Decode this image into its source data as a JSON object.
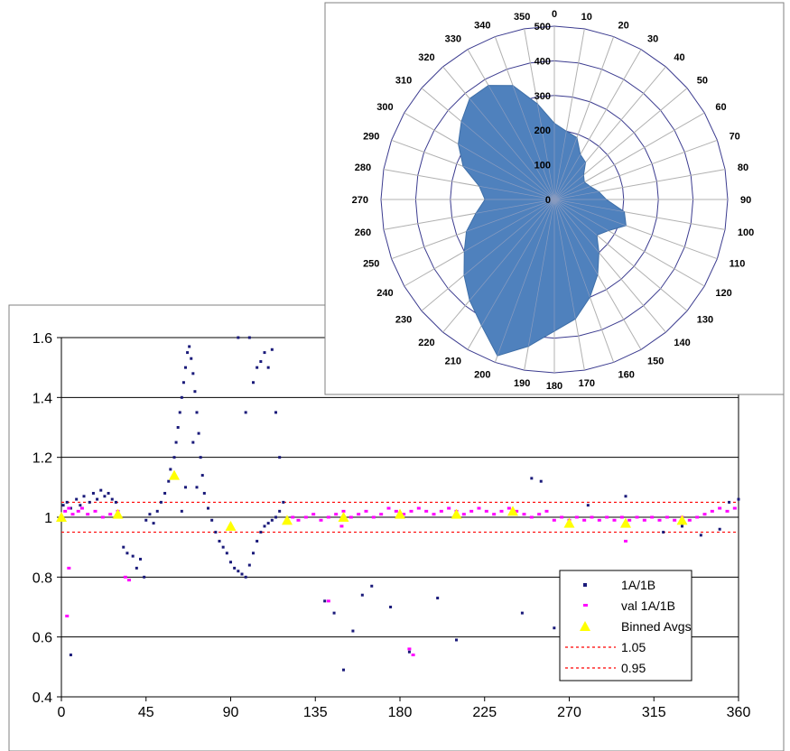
{
  "chart_data": [
    {
      "type": "scatter",
      "title": "",
      "xlabel": "",
      "ylabel": "",
      "xlim": [
        0,
        360
      ],
      "ylim": [
        0.4,
        1.6
      ],
      "x_ticks": [
        "0",
        "45",
        "90",
        "135",
        "180",
        "225",
        "270",
        "315",
        "360"
      ],
      "y_ticks": [
        "0.4",
        "0.6",
        "0.8",
        "1",
        "1.2",
        "1.4",
        "1.6"
      ],
      "grid": "horizontal",
      "legend_position": "bottom-right",
      "series": [
        {
          "name": "1A/1B",
          "color": "#1a1a7a",
          "marker": "dot",
          "points": [
            [
              1,
              1.04
            ],
            [
              3,
              1.05
            ],
            [
              5,
              1.03
            ],
            [
              8,
              1.06
            ],
            [
              10,
              1.04
            ],
            [
              12,
              1.07
            ],
            [
              15,
              1.05
            ],
            [
              17,
              1.08
            ],
            [
              19,
              1.06
            ],
            [
              21,
              1.09
            ],
            [
              23,
              1.07
            ],
            [
              25,
              1.08
            ],
            [
              27,
              1.06
            ],
            [
              29,
              1.05
            ],
            [
              5,
              0.54
            ],
            [
              33,
              0.9
            ],
            [
              35,
              0.88
            ],
            [
              38,
              0.87
            ],
            [
              40,
              0.83
            ],
            [
              42,
              0.86
            ],
            [
              44,
              0.8
            ],
            [
              45,
              0.99
            ],
            [
              47,
              1.01
            ],
            [
              49,
              0.98
            ],
            [
              51,
              1.02
            ],
            [
              53,
              1.05
            ],
            [
              55,
              1.08
            ],
            [
              57,
              1.12
            ],
            [
              58,
              1.16
            ],
            [
              60,
              1.2
            ],
            [
              61,
              1.25
            ],
            [
              62,
              1.3
            ],
            [
              63,
              1.35
            ],
            [
              64,
              1.4
            ],
            [
              65,
              1.45
            ],
            [
              66,
              1.5
            ],
            [
              67,
              1.55
            ],
            [
              68,
              1.57
            ],
            [
              69,
              1.53
            ],
            [
              70,
              1.48
            ],
            [
              71,
              1.42
            ],
            [
              72,
              1.35
            ],
            [
              73,
              1.28
            ],
            [
              74,
              1.2
            ],
            [
              75,
              1.14
            ],
            [
              76,
              1.08
            ],
            [
              78,
              1.03
            ],
            [
              80,
              0.99
            ],
            [
              82,
              0.95
            ],
            [
              84,
              0.92
            ],
            [
              86,
              0.9
            ],
            [
              88,
              0.88
            ],
            [
              90,
              0.85
            ],
            [
              92,
              0.83
            ],
            [
              94,
              0.82
            ],
            [
              96,
              0.81
            ],
            [
              98,
              0.8
            ],
            [
              100,
              0.84
            ],
            [
              102,
              0.88
            ],
            [
              104,
              0.92
            ],
            [
              106,
              0.95
            ],
            [
              108,
              0.97
            ],
            [
              110,
              0.98
            ],
            [
              112,
              0.99
            ],
            [
              114,
              1.0
            ],
            [
              116,
              1.02
            ],
            [
              64,
              1.02
            ],
            [
              66,
              1.1
            ],
            [
              70,
              1.25
            ],
            [
              72,
              1.1
            ],
            [
              94,
              1.6
            ],
            [
              98,
              1.35
            ],
            [
              100,
              1.6
            ],
            [
              102,
              1.45
            ],
            [
              104,
              1.5
            ],
            [
              106,
              1.52
            ],
            [
              108,
              1.55
            ],
            [
              110,
              1.5
            ],
            [
              112,
              1.56
            ],
            [
              114,
              1.35
            ],
            [
              116,
              1.2
            ],
            [
              118,
              1.05
            ],
            [
              140,
              0.72
            ],
            [
              145,
              0.68
            ],
            [
              150,
              0.49
            ],
            [
              155,
              0.62
            ],
            [
              160,
              0.74
            ],
            [
              165,
              0.77
            ],
            [
              175,
              0.7
            ],
            [
              185,
              0.55
            ],
            [
              200,
              0.73
            ],
            [
              210,
              0.59
            ],
            [
              245,
              0.68
            ],
            [
              250,
              1.13
            ],
            [
              255,
              1.12
            ],
            [
              262,
              0.63
            ],
            [
              280,
              1.04
            ],
            [
              300,
              1.07
            ],
            [
              320,
              0.95
            ],
            [
              330,
              0.97
            ],
            [
              340,
              0.94
            ],
            [
              350,
              0.96
            ],
            [
              355,
              1.05
            ],
            [
              360,
              1.06
            ]
          ]
        },
        {
          "name": "val 1A/1B",
          "color": "#ff00ff",
          "marker": "dash",
          "points": [
            [
              2,
              1.02
            ],
            [
              4,
              1.03
            ],
            [
              6,
              1.01
            ],
            [
              9,
              1.02
            ],
            [
              11,
              1.03
            ],
            [
              14,
              1.01
            ],
            [
              18,
              1.02
            ],
            [
              22,
              1.0
            ],
            [
              26,
              1.01
            ],
            [
              30,
              1.02
            ],
            [
              3,
              0.67
            ],
            [
              4,
              0.83
            ],
            [
              34,
              0.8
            ],
            [
              36,
              0.79
            ],
            [
              123,
              1.0
            ],
            [
              126,
              0.99
            ],
            [
              130,
              1.0
            ],
            [
              134,
              1.01
            ],
            [
              138,
              0.99
            ],
            [
              142,
              1.0
            ],
            [
              146,
              1.01
            ],
            [
              150,
              1.02
            ],
            [
              154,
              1.0
            ],
            [
              158,
              1.01
            ],
            [
              162,
              1.02
            ],
            [
              166,
              1.0
            ],
            [
              170,
              1.01
            ],
            [
              174,
              1.03
            ],
            [
              178,
              1.02
            ],
            [
              182,
              1.01
            ],
            [
              186,
              1.02
            ],
            [
              190,
              1.03
            ],
            [
              194,
              1.02
            ],
            [
              198,
              1.01
            ],
            [
              202,
              1.02
            ],
            [
              206,
              1.03
            ],
            [
              210,
              1.02
            ],
            [
              214,
              1.01
            ],
            [
              218,
              1.02
            ],
            [
              222,
              1.03
            ],
            [
              226,
              1.02
            ],
            [
              230,
              1.01
            ],
            [
              234,
              1.02
            ],
            [
              238,
              1.03
            ],
            [
              242,
              1.02
            ],
            [
              246,
              1.01
            ],
            [
              250,
              1.0
            ],
            [
              254,
              1.01
            ],
            [
              258,
              1.02
            ],
            [
              262,
              0.99
            ],
            [
              266,
              1.0
            ],
            [
              270,
              0.99
            ],
            [
              274,
              1.0
            ],
            [
              278,
              0.99
            ],
            [
              282,
              1.0
            ],
            [
              286,
              0.99
            ],
            [
              290,
              1.0
            ],
            [
              294,
              0.99
            ],
            [
              298,
              1.0
            ],
            [
              302,
              0.99
            ],
            [
              306,
              1.0
            ],
            [
              310,
              0.99
            ],
            [
              314,
              1.0
            ],
            [
              318,
              0.99
            ],
            [
              322,
              1.0
            ],
            [
              326,
              0.99
            ],
            [
              330,
              1.0
            ],
            [
              334,
              0.99
            ],
            [
              338,
              1.0
            ],
            [
              342,
              1.01
            ],
            [
              346,
              1.02
            ],
            [
              350,
              1.03
            ],
            [
              354,
              1.02
            ],
            [
              358,
              1.03
            ],
            [
              142,
              0.72
            ],
            [
              185,
              0.56
            ],
            [
              187,
              0.54
            ],
            [
              149,
              0.97
            ],
            [
              300,
              0.92
            ]
          ]
        },
        {
          "name": "Binned Avgs",
          "color": "#ffff00",
          "marker": "triangle",
          "points": [
            [
              0,
              1.0
            ],
            [
              30,
              1.01
            ],
            [
              60,
              1.14
            ],
            [
              90,
              0.97
            ],
            [
              120,
              0.99
            ],
            [
              150,
              1.0
            ],
            [
              180,
              1.01
            ],
            [
              210,
              1.01
            ],
            [
              240,
              1.02
            ],
            [
              270,
              0.98
            ],
            [
              300,
              0.98
            ],
            [
              330,
              0.99
            ]
          ]
        },
        {
          "name": "1.05",
          "color": "#ff0000",
          "marker": "dotted-line",
          "points": [
            [
              0,
              1.05
            ],
            [
              360,
              1.05
            ]
          ]
        },
        {
          "name": "0.95",
          "color": "#ff0000",
          "marker": "dotted-line",
          "points": [
            [
              0,
              0.95
            ],
            [
              360,
              0.95
            ]
          ]
        }
      ]
    },
    {
      "type": "radar",
      "title": "",
      "angle_labels": [
        "0",
        "10",
        "20",
        "30",
        "40",
        "50",
        "60",
        "70",
        "80",
        "90",
        "100",
        "110",
        "120",
        "130",
        "140",
        "150",
        "160",
        "170",
        "180",
        "190",
        "200",
        "210",
        "220",
        "230",
        "240",
        "250",
        "260",
        "270",
        "280",
        "290",
        "300",
        "310",
        "320",
        "330",
        "340",
        "350"
      ],
      "radial_ticks": [
        "0",
        "100",
        "200",
        "300",
        "400",
        "500"
      ],
      "rlim": [
        0,
        500
      ],
      "fill_color": "#4f81bd",
      "grid": true,
      "series": [
        {
          "name": "",
          "values": [
            220,
            200,
            190,
            150,
            140,
            110,
            100,
            110,
            130,
            150,
            205,
            220,
            180,
            160,
            200,
            250,
            300,
            350,
            380,
            430,
            480,
            420,
            380,
            340,
            300,
            270,
            230,
            200,
            220,
            280,
            320,
            350,
            380,
            380,
            350,
            280
          ]
        }
      ]
    }
  ]
}
